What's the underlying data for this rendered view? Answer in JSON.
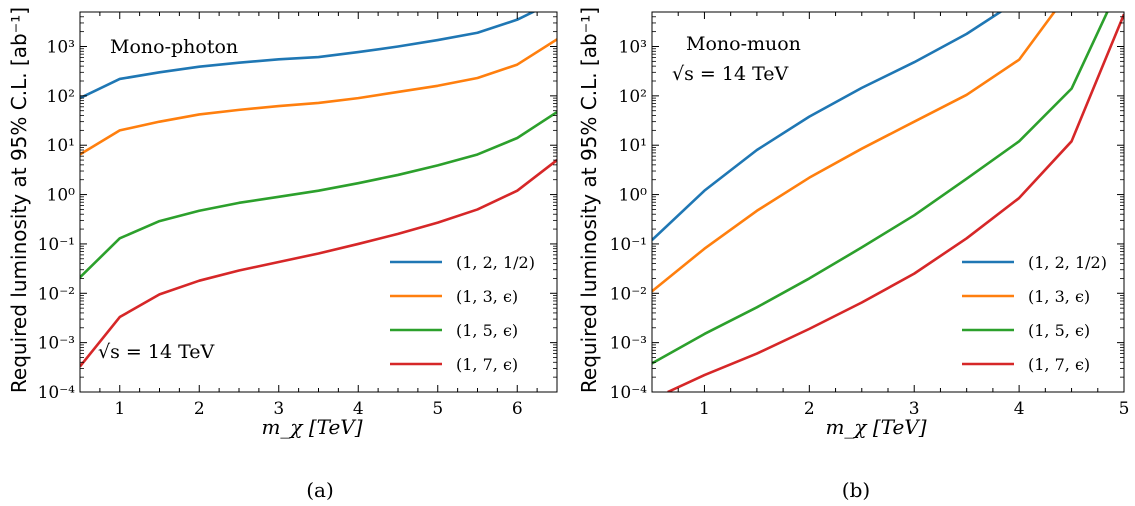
{
  "captions": [
    "(a)",
    "(b)"
  ],
  "chart_data": [
    {
      "type": "line",
      "panel": "a",
      "title": "",
      "xlabel": "m_χ [TeV]",
      "ylabel": "Required luminosity at 95% C.L. [ab⁻¹]",
      "xlim": [
        0.5,
        6.5
      ],
      "ylim": [
        0.0001,
        5000
      ],
      "yscale": "log",
      "grid": false,
      "legend_position": "bottom-right",
      "annotations": [
        "Mono-photon",
        "√s = 14 TeV"
      ],
      "x_ticks": [
        "1",
        "2",
        "3",
        "4",
        "5",
        "6"
      ],
      "y_ticks": [
        "10⁻⁴",
        "10⁻³",
        "10⁻²",
        "10⁻¹",
        "10⁰",
        "10¹",
        "10²",
        "10³"
      ],
      "series": [
        {
          "name": "(1, 2, 1/2)",
          "color": "#1f77b4",
          "x": [
            0.5,
            1.0,
            1.5,
            2.0,
            2.5,
            3.0,
            3.5,
            4.0,
            4.5,
            5.0,
            5.5,
            6.0,
            6.25
          ],
          "y": [
            90,
            220,
            300,
            390,
            470,
            550,
            610,
            770,
            1000,
            1350,
            1900,
            3500,
            5500
          ]
        },
        {
          "name": "(1, 3, ϵ)",
          "color": "#ff7f0e",
          "x": [
            0.5,
            1.0,
            1.5,
            2.0,
            2.5,
            3.0,
            3.5,
            4.0,
            4.5,
            5.0,
            5.5,
            6.0,
            6.5
          ],
          "y": [
            6.5,
            20,
            30,
            42,
            52,
            62,
            72,
            90,
            120,
            160,
            230,
            430,
            1400
          ]
        },
        {
          "name": "(1, 5, ϵ)",
          "color": "#2ca02c",
          "x": [
            0.5,
            1.0,
            1.5,
            2.0,
            2.5,
            3.0,
            3.5,
            4.0,
            4.5,
            5.0,
            5.5,
            6.0,
            6.5
          ],
          "y": [
            0.021,
            0.13,
            0.29,
            0.47,
            0.68,
            0.9,
            1.2,
            1.7,
            2.5,
            3.9,
            6.5,
            14,
            47
          ]
        },
        {
          "name": "(1, 7, ϵ)",
          "color": "#d62728",
          "x": [
            0.5,
            1.0,
            1.5,
            2.0,
            2.5,
            3.0,
            3.5,
            4.0,
            4.5,
            5.0,
            5.5,
            6.0,
            6.5
          ],
          "y": [
            0.00033,
            0.0033,
            0.0095,
            0.018,
            0.029,
            0.043,
            0.064,
            0.1,
            0.16,
            0.27,
            0.5,
            1.2,
            5
          ]
        }
      ]
    },
    {
      "type": "line",
      "panel": "b",
      "title": "",
      "xlabel": "m_χ [TeV]",
      "ylabel": "Required luminosity at 95% C.L. [ab⁻¹]",
      "xlim": [
        0.5,
        5.0
      ],
      "ylim": [
        0.0001,
        5000
      ],
      "yscale": "log",
      "grid": false,
      "legend_position": "bottom-right",
      "annotations": [
        "Mono-muon",
        "√s = 14 TeV"
      ],
      "x_ticks": [
        "1",
        "2",
        "3",
        "4",
        "5"
      ],
      "y_ticks": [
        "10⁻⁴",
        "10⁻³",
        "10⁻²",
        "10⁻¹",
        "10⁰",
        "10¹",
        "10²",
        "10³"
      ],
      "series": [
        {
          "name": "(1, 2, 1/2)",
          "color": "#1f77b4",
          "x": [
            0.5,
            1.0,
            1.5,
            2.0,
            2.5,
            3.0,
            3.5,
            3.85
          ],
          "y": [
            0.12,
            1.2,
            8,
            38,
            145,
            480,
            1800,
            5500
          ]
        },
        {
          "name": "(1, 3, ϵ)",
          "color": "#ff7f0e",
          "x": [
            0.5,
            1.0,
            1.5,
            2.0,
            2.5,
            3.0,
            3.5,
            4.0,
            4.35
          ],
          "y": [
            0.011,
            0.08,
            0.47,
            2.2,
            8.5,
            30,
            105,
            540,
            5500
          ]
        },
        {
          "name": "(1, 5, ϵ)",
          "color": "#2ca02c",
          "x": [
            0.5,
            1.0,
            1.5,
            2.0,
            2.5,
            3.0,
            3.5,
            4.0,
            4.5,
            4.85
          ],
          "y": [
            0.00038,
            0.0015,
            0.0052,
            0.02,
            0.085,
            0.38,
            2.1,
            12,
            140,
            5500
          ]
        },
        {
          "name": "(1, 7, ϵ)",
          "color": "#d62728",
          "x": [
            0.65,
            1.0,
            1.5,
            2.0,
            2.5,
            3.0,
            3.5,
            4.0,
            4.5,
            5.0
          ],
          "y": [
            0.0001,
            0.00022,
            0.0006,
            0.0019,
            0.0065,
            0.025,
            0.13,
            0.85,
            12,
            4500
          ]
        }
      ]
    }
  ]
}
